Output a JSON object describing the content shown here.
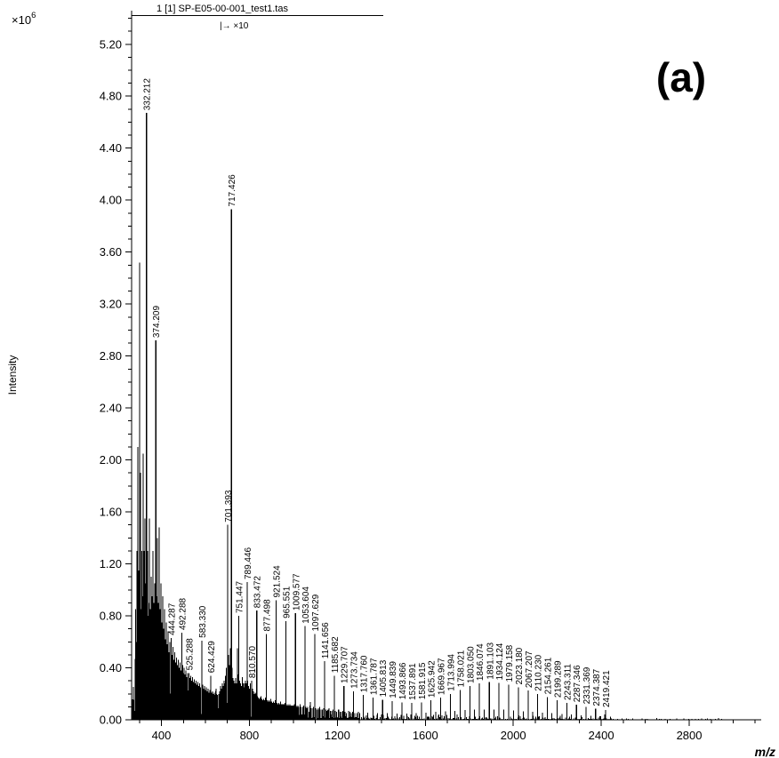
{
  "header": {
    "title": "1 [1] SP-E05-00-001_test1.tas",
    "scale_annotation": "|→ ×10",
    "panel_label": "(a)"
  },
  "axes": {
    "y_scale_prefix": "×10",
    "y_scale_exponent": "6",
    "y_label": "Intensity",
    "x_label": "m/z",
    "x_ticks": [
      {
        "value": 400,
        "label": "400"
      },
      {
        "value": 800,
        "label": "800"
      },
      {
        "value": 1200,
        "label": "1200"
      },
      {
        "value": 1600,
        "label": "1600"
      },
      {
        "value": 2000,
        "label": "2000"
      },
      {
        "value": 2400,
        "label": "2400"
      },
      {
        "value": 2800,
        "label": "2800"
      }
    ],
    "y_ticks": [
      {
        "value": 0.0,
        "label": "0.00"
      },
      {
        "value": 0.4,
        "label": "0.40"
      },
      {
        "value": 0.8,
        "label": "0.80"
      },
      {
        "value": 1.2,
        "label": "1.20"
      },
      {
        "value": 1.6,
        "label": "1.60"
      },
      {
        "value": 2.0,
        "label": "2.00"
      },
      {
        "value": 2.4,
        "label": "2.40"
      },
      {
        "value": 2.8,
        "label": "2.80"
      },
      {
        "value": 3.2,
        "label": "3.20"
      },
      {
        "value": 3.6,
        "label": "3.60"
      },
      {
        "value": 4.0,
        "label": "4.00"
      },
      {
        "value": 4.4,
        "label": "4.40"
      },
      {
        "value": 4.8,
        "label": "4.80"
      },
      {
        "value": 5.2,
        "label": "5.20"
      }
    ],
    "x_minor_step": 100,
    "y_minor_step": 0.1
  },
  "chart_data": {
    "type": "bar",
    "subtype": "mass-spectrum-stick-plot",
    "title": "1 [1] SP-E05-00-001_test1.tas",
    "xlabel": "m/z",
    "ylabel": "Intensity",
    "y_unit_multiplier": "×10^6",
    "xlim": [
      264,
      3127
    ],
    "ylim": [
      0,
      5.46
    ],
    "grid": false,
    "legend": false,
    "magnify_annotation": {
      "text": "|→ ×10",
      "applies_from_mz": 666
    },
    "labeled_peaks": [
      {
        "mz": 332.212,
        "label": "332.212",
        "intensity_e6": 4.67
      },
      {
        "mz": 374.209,
        "label": "374.209",
        "intensity_e6": 2.92
      },
      {
        "mz": 444.287,
        "label": "444.287",
        "intensity_e6": 0.63
      },
      {
        "mz": 492.288,
        "label": "492.288",
        "intensity_e6": 0.67
      },
      {
        "mz": 525.288,
        "label": "525.288",
        "intensity_e6": 0.36
      },
      {
        "mz": 583.33,
        "label": "583.330",
        "intensity_e6": 0.61
      },
      {
        "mz": 624.429,
        "label": "624.429",
        "intensity_e6": 0.34
      },
      {
        "mz": 701.393,
        "label": "701.393",
        "intensity_e6": 1.5
      },
      {
        "mz": 717.426,
        "label": "717.426",
        "intensity_e6": 3.93
      },
      {
        "mz": 751.447,
        "label": "751.447",
        "intensity_e6": 0.8
      },
      {
        "mz": 789.446,
        "label": "789.446",
        "intensity_e6": 1.06
      },
      {
        "mz": 810.57,
        "label": "810.570",
        "intensity_e6": 0.3
      },
      {
        "mz": 833.472,
        "label": "833.472",
        "intensity_e6": 0.84
      },
      {
        "mz": 877.498,
        "label": "877.498",
        "intensity_e6": 0.66
      },
      {
        "mz": 921.524,
        "label": "921.524",
        "intensity_e6": 0.92
      },
      {
        "mz": 965.551,
        "label": "965.551",
        "intensity_e6": 0.76
      },
      {
        "mz": 1009.577,
        "label": "1009.577",
        "intensity_e6": 0.82
      },
      {
        "mz": 1053.604,
        "label": "1053.604",
        "intensity_e6": 0.72
      },
      {
        "mz": 1097.629,
        "label": "1097.629",
        "intensity_e6": 0.66
      },
      {
        "mz": 1141.656,
        "label": "1141.656",
        "intensity_e6": 0.45
      },
      {
        "mz": 1185.682,
        "label": "1185.682",
        "intensity_e6": 0.34
      },
      {
        "mz": 1229.707,
        "label": "1229.707",
        "intensity_e6": 0.26
      },
      {
        "mz": 1273.734,
        "label": "1273.734",
        "intensity_e6": 0.22
      },
      {
        "mz": 1317.76,
        "label": "1317.760",
        "intensity_e6": 0.19
      },
      {
        "mz": 1361.787,
        "label": "1361.787",
        "intensity_e6": 0.17
      },
      {
        "mz": 1405.813,
        "label": "1405.813",
        "intensity_e6": 0.155
      },
      {
        "mz": 1449.839,
        "label": "1449.839",
        "intensity_e6": 0.145
      },
      {
        "mz": 1493.866,
        "label": "1493.866",
        "intensity_e6": 0.135
      },
      {
        "mz": 1537.891,
        "label": "1537.891",
        "intensity_e6": 0.13
      },
      {
        "mz": 1581.915,
        "label": "1581.915",
        "intensity_e6": 0.135
      },
      {
        "mz": 1625.942,
        "label": "1625.942",
        "intensity_e6": 0.15
      },
      {
        "mz": 1669.967,
        "label": "1669.967",
        "intensity_e6": 0.17
      },
      {
        "mz": 1713.994,
        "label": "1713.994",
        "intensity_e6": 0.2
      },
      {
        "mz": 1758.021,
        "label": "1758.021",
        "intensity_e6": 0.23
      },
      {
        "mz": 1803.05,
        "label": "1803.050",
        "intensity_e6": 0.26
      },
      {
        "mz": 1846.074,
        "label": "1846.074",
        "intensity_e6": 0.28
      },
      {
        "mz": 1891.103,
        "label": "1891.103",
        "intensity_e6": 0.29
      },
      {
        "mz": 1934.124,
        "label": "1934.124",
        "intensity_e6": 0.285
      },
      {
        "mz": 1979.158,
        "label": "1979.158",
        "intensity_e6": 0.27
      },
      {
        "mz": 2023.18,
        "label": "2023.180",
        "intensity_e6": 0.25
      },
      {
        "mz": 2067.207,
        "label": "2067.207",
        "intensity_e6": 0.225
      },
      {
        "mz": 2110.23,
        "label": "2110.230",
        "intensity_e6": 0.2
      },
      {
        "mz": 2154.261,
        "label": "2154.261",
        "intensity_e6": 0.175
      },
      {
        "mz": 2199.289,
        "label": "2199.289",
        "intensity_e6": 0.15
      },
      {
        "mz": 2243.311,
        "label": "2243.311",
        "intensity_e6": 0.13
      },
      {
        "mz": 2287.346,
        "label": "2287.346",
        "intensity_e6": 0.115
      },
      {
        "mz": 2331.369,
        "label": "2331.369",
        "intensity_e6": 0.1
      },
      {
        "mz": 2374.387,
        "label": "2374.387",
        "intensity_e6": 0.085
      },
      {
        "mz": 2419.421,
        "label": "2419.421",
        "intensity_e6": 0.075
      }
    ],
    "minor_peaks": [
      [
        283,
        0.85
      ],
      [
        286,
        0.6
      ],
      [
        288,
        1.3
      ],
      [
        290,
        0.72
      ],
      [
        292,
        2.1
      ],
      [
        294,
        0.9
      ],
      [
        297,
        1.15
      ],
      [
        299,
        0.78
      ],
      [
        301,
        3.52
      ],
      [
        303,
        1.0
      ],
      [
        305,
        1.9
      ],
      [
        307,
        0.85
      ],
      [
        310,
        1.3
      ],
      [
        312,
        0.88
      ],
      [
        315,
        0.95
      ],
      [
        318,
        2.05
      ],
      [
        320,
        1.08
      ],
      [
        322,
        1.3
      ],
      [
        324,
        0.85
      ],
      [
        326,
        1.55
      ],
      [
        329,
        1.05
      ],
      [
        336,
        0.95
      ],
      [
        338,
        1.3
      ],
      [
        340,
        0.8
      ],
      [
        343,
        0.9
      ],
      [
        346,
        1.55
      ],
      [
        348,
        0.75
      ],
      [
        350,
        0.85
      ],
      [
        354,
        1.1
      ],
      [
        356,
        0.7
      ],
      [
        358,
        0.95
      ],
      [
        362,
        1.3
      ],
      [
        364,
        0.75
      ],
      [
        366,
        0.9
      ],
      [
        370,
        1.05
      ],
      [
        372,
        0.7
      ],
      [
        378,
        0.95
      ],
      [
        380,
        0.7
      ],
      [
        382,
        1.4
      ],
      [
        386,
        0.9
      ],
      [
        388,
        0.65
      ],
      [
        390,
        1.48
      ],
      [
        394,
        0.85
      ],
      [
        398,
        1.05
      ],
      [
        402,
        0.75
      ],
      [
        406,
        0.95
      ],
      [
        410,
        0.7
      ],
      [
        414,
        0.85
      ],
      [
        418,
        0.62
      ],
      [
        422,
        0.75
      ],
      [
        426,
        0.58
      ],
      [
        430,
        0.68
      ],
      [
        434,
        0.52
      ],
      [
        438,
        0.6
      ],
      [
        448,
        0.5
      ],
      [
        452,
        0.56
      ],
      [
        456,
        0.46
      ],
      [
        460,
        0.52
      ],
      [
        464,
        0.44
      ],
      [
        468,
        0.48
      ],
      [
        472,
        0.42
      ],
      [
        476,
        0.46
      ],
      [
        480,
        0.4
      ],
      [
        484,
        0.44
      ],
      [
        488,
        0.38
      ],
      [
        496,
        0.42
      ],
      [
        500,
        0.36
      ],
      [
        504,
        0.4
      ],
      [
        508,
        0.35
      ],
      [
        512,
        0.38
      ],
      [
        516,
        0.33
      ],
      [
        520,
        0.36
      ],
      [
        530,
        0.32
      ],
      [
        534,
        0.34
      ],
      [
        538,
        0.3
      ],
      [
        542,
        0.33
      ],
      [
        546,
        0.29
      ],
      [
        550,
        0.31
      ],
      [
        554,
        0.28
      ],
      [
        558,
        0.3
      ],
      [
        562,
        0.27
      ],
      [
        566,
        0.29
      ],
      [
        570,
        0.26
      ],
      [
        574,
        0.28
      ],
      [
        578,
        0.25
      ],
      [
        588,
        0.27
      ],
      [
        592,
        0.24
      ],
      [
        596,
        0.26
      ],
      [
        600,
        0.23
      ],
      [
        604,
        0.25
      ],
      [
        608,
        0.22
      ],
      [
        612,
        0.24
      ],
      [
        616,
        0.21
      ],
      [
        620,
        0.23
      ],
      [
        628,
        0.21
      ],
      [
        632,
        0.22
      ],
      [
        636,
        0.2
      ],
      [
        640,
        0.21
      ],
      [
        645,
        0.19
      ],
      [
        650,
        0.2
      ],
      [
        655,
        0.19
      ],
      [
        660,
        0.2
      ],
      [
        664,
        0.22
      ],
      [
        668,
        0.26
      ],
      [
        672,
        0.24
      ],
      [
        676,
        0.28
      ],
      [
        680,
        0.26
      ],
      [
        684,
        0.3
      ],
      [
        688,
        0.28
      ],
      [
        692,
        0.34
      ],
      [
        696,
        0.4
      ],
      [
        705,
        0.5
      ],
      [
        709,
        0.42
      ],
      [
        713,
        0.55
      ],
      [
        721,
        0.4
      ],
      [
        725,
        0.32
      ],
      [
        729,
        0.3
      ],
      [
        733,
        0.28
      ],
      [
        737,
        0.32
      ],
      [
        741,
        0.28
      ],
      [
        745,
        0.55
      ],
      [
        748,
        0.35
      ],
      [
        755,
        0.3
      ],
      [
        759,
        0.28
      ],
      [
        763,
        0.26
      ],
      [
        767,
        0.33
      ],
      [
        771,
        0.28
      ],
      [
        775,
        0.25
      ],
      [
        779,
        0.28
      ],
      [
        783,
        0.3
      ],
      [
        786,
        0.28
      ],
      [
        793,
        0.3
      ],
      [
        797,
        0.26
      ],
      [
        801,
        0.24
      ],
      [
        805,
        0.28
      ],
      [
        814,
        0.24
      ],
      [
        818,
        0.22
      ],
      [
        822,
        0.2
      ],
      [
        826,
        0.21
      ],
      [
        830,
        0.19
      ],
      [
        837,
        0.18
      ],
      [
        841,
        0.17
      ],
      [
        845,
        0.16
      ],
      [
        849,
        0.17
      ],
      [
        853,
        0.18
      ],
      [
        857,
        0.16
      ],
      [
        861,
        0.15
      ],
      [
        865,
        0.16
      ],
      [
        869,
        0.15
      ],
      [
        873,
        0.17
      ],
      [
        881,
        0.15
      ],
      [
        885,
        0.14
      ],
      [
        889,
        0.15
      ],
      [
        893,
        0.14
      ],
      [
        897,
        0.16
      ],
      [
        901,
        0.14
      ],
      [
        905,
        0.13
      ],
      [
        909,
        0.14
      ],
      [
        913,
        0.13
      ],
      [
        917,
        0.15
      ],
      [
        925,
        0.13
      ],
      [
        929,
        0.12
      ],
      [
        933,
        0.13
      ],
      [
        937,
        0.12
      ],
      [
        941,
        0.14
      ],
      [
        945,
        0.12
      ],
      [
        949,
        0.12
      ],
      [
        953,
        0.12
      ],
      [
        957,
        0.12
      ],
      [
        961,
        0.13
      ],
      [
        969,
        0.12
      ],
      [
        973,
        0.11
      ],
      [
        977,
        0.12
      ],
      [
        981,
        0.11
      ],
      [
        985,
        0.12
      ],
      [
        989,
        0.11
      ],
      [
        993,
        0.11
      ],
      [
        997,
        0.11
      ],
      [
        1001,
        0.11
      ],
      [
        1005,
        0.12
      ],
      [
        1013,
        0.11
      ],
      [
        1017,
        0.1
      ],
      [
        1021,
        0.11
      ],
      [
        1025,
        0.1
      ],
      [
        1031,
        0.12
      ],
      [
        1035,
        0.1
      ],
      [
        1043,
        0.1
      ],
      [
        1047,
        0.11
      ],
      [
        1057,
        0.1
      ],
      [
        1061,
        0.09
      ],
      [
        1065,
        0.1
      ],
      [
        1075,
        0.11
      ],
      [
        1079,
        0.09
      ],
      [
        1085,
        0.09
      ],
      [
        1091,
        0.1
      ],
      [
        1101,
        0.09
      ],
      [
        1107,
        0.08
      ],
      [
        1113,
        0.09
      ],
      [
        1119,
        0.1
      ],
      [
        1125,
        0.08
      ],
      [
        1131,
        0.08
      ],
      [
        1137,
        0.09
      ],
      [
        1147,
        0.08
      ],
      [
        1153,
        0.07
      ],
      [
        1159,
        0.08
      ],
      [
        1163,
        0.09
      ],
      [
        1169,
        0.07
      ],
      [
        1175,
        0.07
      ],
      [
        1181,
        0.08
      ],
      [
        1191,
        0.07
      ],
      [
        1197,
        0.06
      ],
      [
        1207,
        0.08
      ],
      [
        1213,
        0.06
      ],
      [
        1219,
        0.06
      ],
      [
        1225,
        0.07
      ],
      [
        1235,
        0.06
      ],
      [
        1241,
        0.05
      ],
      [
        1251,
        0.07
      ],
      [
        1257,
        0.05
      ],
      [
        1263,
        0.05
      ],
      [
        1269,
        0.06
      ],
      [
        1279,
        0.05
      ],
      [
        1289,
        0.05
      ],
      [
        1295,
        0.06
      ],
      [
        1301,
        0.05
      ],
      [
        1339,
        0.055
      ],
      [
        1383,
        0.05
      ],
      [
        1427,
        0.05
      ],
      [
        1471,
        0.048
      ],
      [
        1515,
        0.048
      ],
      [
        1559,
        0.05
      ],
      [
        1603,
        0.055
      ],
      [
        1647,
        0.06
      ],
      [
        1691,
        0.065
      ],
      [
        1735,
        0.07
      ],
      [
        1780,
        0.075
      ],
      [
        1824,
        0.078
      ],
      [
        1868,
        0.08
      ],
      [
        1912,
        0.08
      ],
      [
        1956,
        0.078
      ],
      [
        2001,
        0.072
      ],
      [
        2045,
        0.066
      ],
      [
        2089,
        0.06
      ],
      [
        2132,
        0.055
      ],
      [
        2176,
        0.05
      ],
      [
        2221,
        0.045
      ],
      [
        2265,
        0.04
      ],
      [
        2309,
        0.035
      ],
      [
        2353,
        0.03
      ],
      [
        2397,
        0.028
      ],
      [
        2441,
        0.025
      ]
    ],
    "noise_regions": [
      {
        "from": 266,
        "to": 440,
        "step": 1.3,
        "base": 0.02,
        "amp": 0.4
      },
      {
        "from": 440,
        "to": 700,
        "step": 2.0,
        "base": 0.02,
        "amp": 0.22
      },
      {
        "from": 700,
        "to": 1000,
        "step": 2.6,
        "base": 0.015,
        "amp": 0.1
      },
      {
        "from": 1000,
        "to": 1300,
        "step": 3.4,
        "base": 0.012,
        "amp": 0.07
      },
      {
        "from": 1300,
        "to": 1750,
        "step": 5.0,
        "base": 0.008,
        "amp": 0.035
      },
      {
        "from": 1750,
        "to": 2460,
        "step": 6.0,
        "base": 0.006,
        "amp": 0.03
      },
      {
        "from": 2460,
        "to": 2950,
        "step": 15.0,
        "base": 0.004,
        "amp": 0.012
      }
    ]
  },
  "colors": {
    "ink": "#000000",
    "background": "#ffffff"
  }
}
